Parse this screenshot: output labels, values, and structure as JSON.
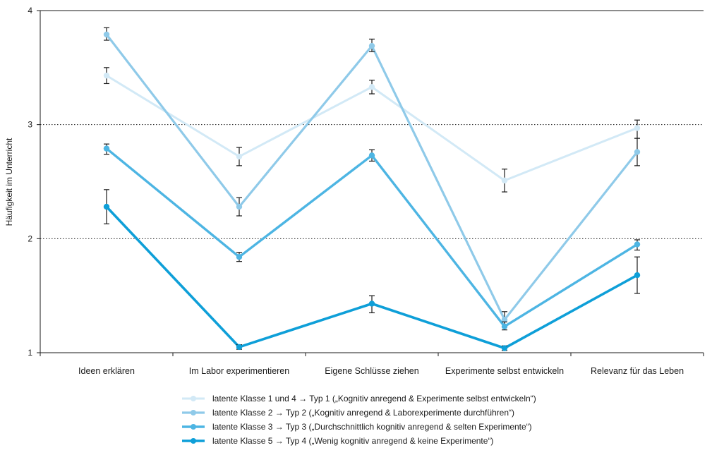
{
  "chart_data": {
    "type": "line",
    "title": "",
    "xlabel": "",
    "ylabel": "Häufigkeit im Unterricht",
    "ylim": [
      1,
      4
    ],
    "yticks": [
      1,
      2,
      3,
      4
    ],
    "grid": "horizontal dotted at 2 and 3",
    "legend_position": "bottom",
    "categories": [
      "Ideen erklären",
      "Im Labor experimentieren",
      "Eigene Schlüsse ziehen",
      "Experimente selbst entwickeln",
      "Relevanz für das Leben"
    ],
    "series": [
      {
        "name": "latente Klasse 1 und 4 → Typ 1 („Kognitiv anregend & Experimente selbst entwickeln“)",
        "color": "#d2e9f6",
        "values": [
          3.43,
          2.72,
          3.33,
          2.51,
          2.97
        ],
        "err_low": [
          3.36,
          2.64,
          3.27,
          2.41,
          2.88
        ],
        "err_high": [
          3.5,
          2.8,
          3.39,
          2.61,
          3.04
        ]
      },
      {
        "name": "latente Klasse 2 → Typ 2 („Kognitiv anregend & Laborexperimente durchführen“)",
        "color": "#8fcae9",
        "values": [
          3.79,
          2.28,
          3.69,
          1.29,
          2.76
        ],
        "err_low": [
          3.74,
          2.2,
          3.64,
          1.23,
          2.64
        ],
        "err_high": [
          3.85,
          2.36,
          3.75,
          1.36,
          2.88
        ]
      },
      {
        "name": "latente Klasse 3 → Typ 3 („Durchschnittlich kognitiv anregend & selten Experimente“)",
        "color": "#4db5e3",
        "values": [
          2.79,
          1.84,
          2.73,
          1.23,
          1.95
        ],
        "err_low": [
          2.74,
          1.8,
          2.68,
          1.2,
          1.9
        ],
        "err_high": [
          2.83,
          1.88,
          2.78,
          1.27,
          1.99
        ]
      },
      {
        "name": "latente Klasse 5 → Typ 4 („Wenig kognitiv anregend & keine Experimente“)",
        "color": "#0e9fd8",
        "values": [
          2.28,
          1.05,
          1.43,
          1.04,
          1.68
        ],
        "err_low": [
          2.13,
          1.03,
          1.35,
          1.02,
          1.52
        ],
        "err_high": [
          2.43,
          1.07,
          1.5,
          1.06,
          1.84
        ]
      }
    ]
  }
}
